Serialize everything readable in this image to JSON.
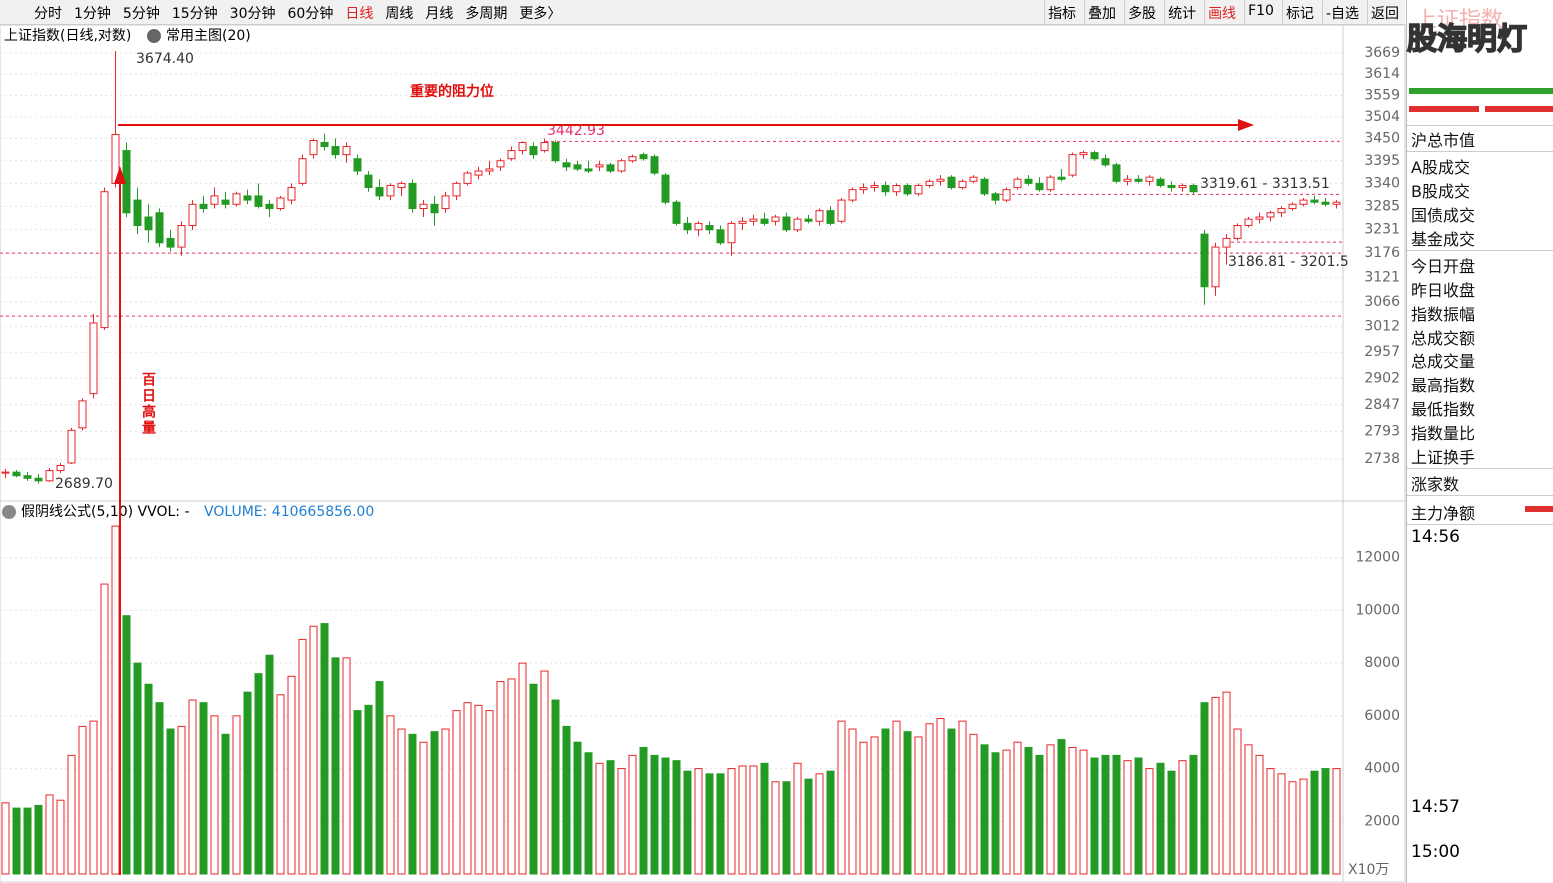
{
  "toolbar": {
    "periods": [
      "分时",
      "1分钟",
      "5分钟",
      "15分钟",
      "30分钟",
      "60分钟",
      "日线",
      "周线",
      "月线",
      "多周期",
      "更多〉"
    ],
    "tools": [
      "指标",
      "叠加",
      "多股",
      "统计",
      "画线",
      "F10",
      "标记",
      "-自选",
      "返回"
    ]
  },
  "chart_data": [
    {
      "type": "candlestick",
      "title": "上证指数(日线,对数)",
      "subtitle": "常用主图(20)",
      "log_scale": true,
      "grid": true,
      "up_color": "#e8262b",
      "down_color": "#239a23",
      "ylim": [
        2658,
        3704
      ],
      "yticks": [
        3669,
        3614,
        3559,
        3504,
        3450,
        3395,
        3340,
        3285,
        3231,
        3176,
        3121,
        3066,
        3012,
        2957,
        2902,
        2847,
        2793,
        2738
      ],
      "candles": [
        [
          2710,
          2718,
          2700,
          2712
        ],
        [
          2712,
          2716,
          2702,
          2705
        ],
        [
          2705,
          2712,
          2695,
          2700
        ],
        [
          2700,
          2708,
          2689.7,
          2695
        ],
        [
          2695,
          2720,
          2693,
          2715
        ],
        [
          2715,
          2730,
          2710,
          2725
        ],
        [
          2730,
          2800,
          2728,
          2795
        ],
        [
          2800,
          2860,
          2795,
          2855
        ],
        [
          2870,
          3040,
          2860,
          3020
        ],
        [
          3010,
          3330,
          3005,
          3320
        ],
        [
          3340,
          3674.4,
          3330,
          3460
        ],
        [
          3420,
          3440,
          3260,
          3270
        ],
        [
          3300,
          3330,
          3220,
          3240
        ],
        [
          3260,
          3290,
          3200,
          3230
        ],
        [
          3270,
          3280,
          3190,
          3200
        ],
        [
          3210,
          3230,
          3180,
          3190
        ],
        [
          3190,
          3250,
          3170,
          3240
        ],
        [
          3240,
          3300,
          3230,
          3290
        ],
        [
          3290,
          3310,
          3270,
          3280
        ],
        [
          3290,
          3330,
          3280,
          3310
        ],
        [
          3300,
          3320,
          3280,
          3290
        ],
        [
          3290,
          3320,
          3285,
          3315
        ],
        [
          3310,
          3325,
          3290,
          3300
        ],
        [
          3310,
          3340,
          3280,
          3285
        ],
        [
          3290,
          3300,
          3260,
          3280
        ],
        [
          3280,
          3310,
          3275,
          3305
        ],
        [
          3300,
          3340,
          3290,
          3330
        ],
        [
          3340,
          3410,
          3335,
          3400
        ],
        [
          3410,
          3450,
          3400,
          3445
        ],
        [
          3440,
          3462,
          3420,
          3430
        ],
        [
          3430,
          3450,
          3400,
          3410
        ],
        [
          3410,
          3440,
          3390,
          3430
        ],
        [
          3400,
          3410,
          3360,
          3370
        ],
        [
          3360,
          3370,
          3320,
          3330
        ],
        [
          3330,
          3350,
          3300,
          3310
        ],
        [
          3310,
          3340,
          3300,
          3335
        ],
        [
          3330,
          3345,
          3310,
          3340
        ],
        [
          3340,
          3350,
          3270,
          3280
        ],
        [
          3280,
          3300,
          3260,
          3290
        ],
        [
          3290,
          3310,
          3240,
          3270
        ],
        [
          3280,
          3320,
          3270,
          3310
        ],
        [
          3310,
          3345,
          3300,
          3340
        ],
        [
          3340,
          3370,
          3335,
          3365
        ],
        [
          3360,
          3380,
          3350,
          3370
        ],
        [
          3370,
          3395,
          3360,
          3375
        ],
        [
          3380,
          3400,
          3370,
          3395
        ],
        [
          3400,
          3430,
          3395,
          3420
        ],
        [
          3420,
          3442.93,
          3410,
          3440
        ],
        [
          3430,
          3440,
          3400,
          3410
        ],
        [
          3420,
          3450,
          3415,
          3440
        ],
        [
          3440,
          3445,
          3390,
          3395
        ],
        [
          3390,
          3400,
          3370,
          3380
        ],
        [
          3385,
          3395,
          3370,
          3375
        ],
        [
          3375,
          3395,
          3365,
          3370
        ],
        [
          3380,
          3395,
          3370,
          3385
        ],
        [
          3385,
          3390,
          3365,
          3370
        ],
        [
          3370,
          3400,
          3365,
          3395
        ],
        [
          3395,
          3410,
          3390,
          3405
        ],
        [
          3410,
          3415,
          3395,
          3400
        ],
        [
          3405,
          3410,
          3360,
          3365
        ],
        [
          3360,
          3365,
          3290,
          3295
        ],
        [
          3295,
          3300,
          3240,
          3245
        ],
        [
          3245,
          3260,
          3220,
          3230
        ],
        [
          3230,
          3250,
          3215,
          3245
        ],
        [
          3240,
          3250,
          3220,
          3230
        ],
        [
          3230,
          3240,
          3195,
          3200
        ],
        [
          3200,
          3250,
          3170,
          3245
        ],
        [
          3245,
          3260,
          3230,
          3250
        ],
        [
          3250,
          3265,
          3240,
          3255
        ],
        [
          3255,
          3270,
          3240,
          3245
        ],
        [
          3250,
          3265,
          3240,
          3260
        ],
        [
          3260,
          3270,
          3225,
          3230
        ],
        [
          3230,
          3260,
          3225,
          3255
        ],
        [
          3255,
          3265,
          3245,
          3250
        ],
        [
          3250,
          3280,
          3240,
          3275
        ],
        [
          3275,
          3285,
          3240,
          3245
        ],
        [
          3250,
          3305,
          3245,
          3300
        ],
        [
          3300,
          3330,
          3295,
          3325
        ],
        [
          3325,
          3340,
          3315,
          3330
        ],
        [
          3330,
          3345,
          3320,
          3335
        ],
        [
          3335,
          3345,
          3310,
          3320
        ],
        [
          3320,
          3340,
          3310,
          3335
        ],
        [
          3335,
          3340,
          3310,
          3315
        ],
        [
          3315,
          3340,
          3310,
          3335
        ],
        [
          3335,
          3350,
          3330,
          3345
        ],
        [
          3345,
          3360,
          3335,
          3350
        ],
        [
          3355,
          3360,
          3325,
          3330
        ],
        [
          3330,
          3350,
          3325,
          3345
        ],
        [
          3345,
          3360,
          3340,
          3355
        ],
        [
          3350,
          3355,
          3310,
          3315
        ],
        [
          3315,
          3320,
          3290,
          3300
        ],
        [
          3300,
          3330,
          3295,
          3325
        ],
        [
          3330,
          3355,
          3325,
          3350
        ],
        [
          3350,
          3360,
          3335,
          3340
        ],
        [
          3340,
          3355,
          3320,
          3325
        ],
        [
          3325,
          3360,
          3320,
          3355
        ],
        [
          3355,
          3375,
          3345,
          3350
        ],
        [
          3360,
          3415,
          3355,
          3410
        ],
        [
          3410,
          3420,
          3400,
          3415
        ],
        [
          3415,
          3420,
          3395,
          3400
        ],
        [
          3400,
          3410,
          3380,
          3385
        ],
        [
          3385,
          3390,
          3340,
          3345
        ],
        [
          3345,
          3360,
          3335,
          3350
        ],
        [
          3350,
          3360,
          3340,
          3345
        ],
        [
          3345,
          3360,
          3335,
          3355
        ],
        [
          3350,
          3355,
          3330,
          3335
        ],
        [
          3335,
          3345,
          3320,
          3330
        ],
        [
          3330,
          3340,
          3320,
          3335
        ],
        [
          3335,
          3340,
          3315,
          3320
        ],
        [
          3220,
          3230,
          3060,
          3100
        ],
        [
          3100,
          3200,
          3080,
          3190
        ],
        [
          3190,
          3220,
          3150,
          3210
        ],
        [
          3210,
          3245,
          3205,
          3240
        ],
        [
          3240,
          3260,
          3235,
          3255
        ],
        [
          3255,
          3270,
          3245,
          3260
        ],
        [
          3260,
          3275,
          3250,
          3270
        ],
        [
          3270,
          3285,
          3260,
          3280
        ],
        [
          3280,
          3295,
          3275,
          3290
        ],
        [
          3290,
          3305,
          3285,
          3300
        ],
        [
          3300,
          3310,
          3290,
          3295
        ],
        [
          3295,
          3305,
          3285,
          3290
        ],
        [
          3290,
          3300,
          3280,
          3295
        ]
      ],
      "hlines": [
        3442.93,
        3313.51,
        3201.5,
        3176,
        3035
      ],
      "annotations": [
        "3674.40",
        "2689.70",
        "3442.93",
        "3319.61 - 3313.51",
        "3186.81 - 3201.5",
        "重要的阻力位",
        "百日高量"
      ]
    },
    {
      "type": "bar",
      "title": "假阴线公式(5,10) VVOL: -",
      "subtitle": "VOLUME: 410665856.00",
      "unit": "X10万",
      "grid": true,
      "ylim": [
        0,
        14000
      ],
      "yticks": [
        2000,
        4000,
        6000,
        8000,
        10000,
        12000
      ],
      "values": [
        2700,
        2500,
        2500,
        2600,
        3000,
        2800,
        4500,
        5600,
        5800,
        11000,
        13200,
        9800,
        8000,
        7200,
        6500,
        5500,
        5600,
        6600,
        6500,
        6000,
        5300,
        6000,
        6900,
        7600,
        8300,
        6800,
        7500,
        8900,
        9400,
        9500,
        8200,
        8200,
        6200,
        6400,
        7300,
        6000,
        5500,
        5300,
        5000,
        5400,
        5500,
        6200,
        6500,
        6400,
        6200,
        7300,
        7400,
        8000,
        7200,
        7700,
        6600,
        5600,
        5000,
        4600,
        4200,
        4300,
        4000,
        4500,
        4800,
        4500,
        4400,
        4300,
        3900,
        4000,
        3800,
        3800,
        4000,
        4100,
        4100,
        4200,
        3500,
        3500,
        4200,
        3600,
        3800,
        3900,
        5800,
        5500,
        5000,
        5200,
        5500,
        5800,
        5400,
        5200,
        5700,
        5900,
        5500,
        5800,
        5300,
        4900,
        4600,
        4700,
        5000,
        4800,
        4500,
        4900,
        5100,
        4800,
        4700,
        4400,
        4500,
        4500,
        4300,
        4400,
        4000,
        4200,
        3900,
        4300,
        4500,
        6500,
        6700,
        6900,
        5500,
        4900,
        4500,
        4000,
        3800,
        3500,
        3600,
        3900,
        4000,
        4000
      ]
    }
  ],
  "side_panel": {
    "title": "上证指数",
    "watermark": "股海明灯",
    "items": [
      "沪总市值",
      "A股成交",
      "B股成交",
      "国债成交",
      "基金成交",
      "今日开盘",
      "昨日收盘",
      "指数振幅",
      "总成交额",
      "总成交量",
      "最高指数",
      "最低指数",
      "指数量比",
      "上证换手",
      "涨家数",
      "主力净额"
    ],
    "times": [
      "14:56",
      "14:57",
      "15:00"
    ]
  }
}
